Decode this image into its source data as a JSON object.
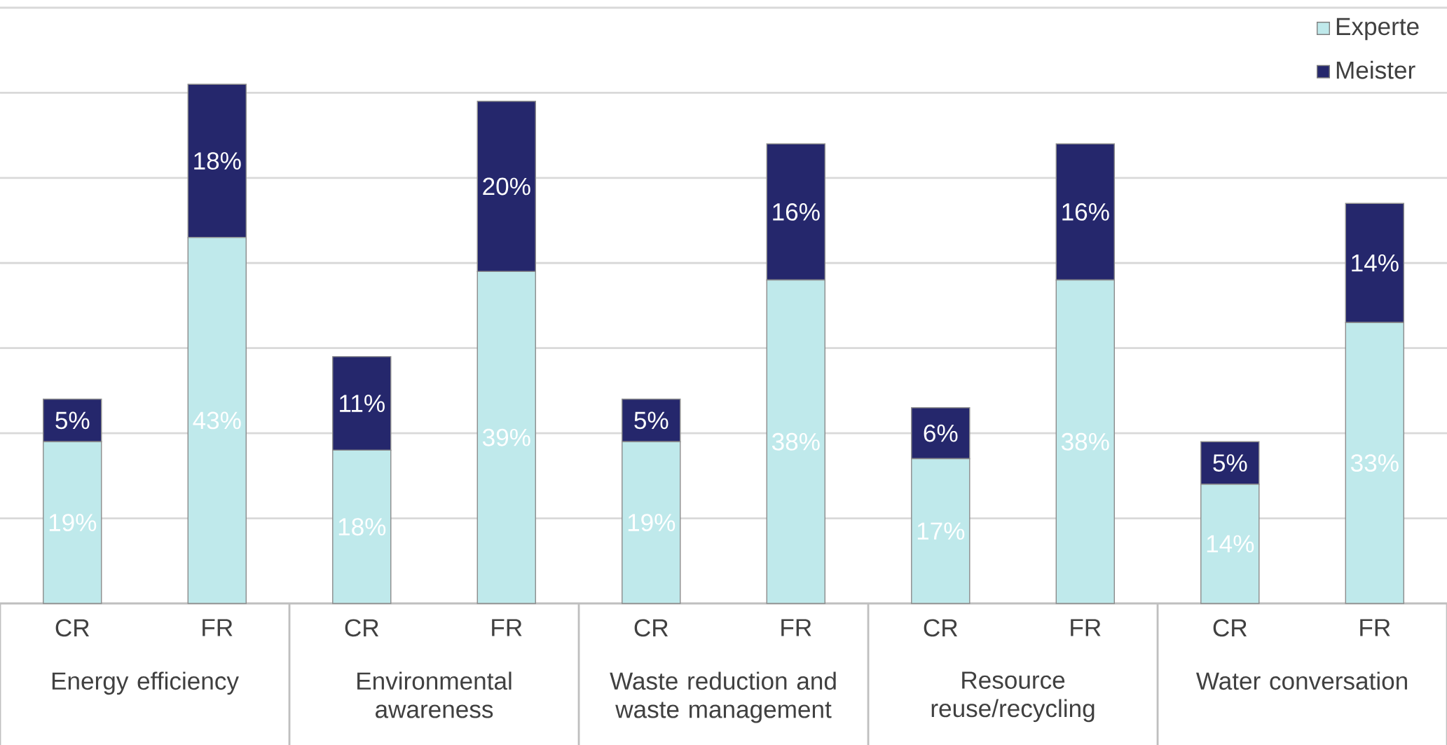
{
  "chart_data": {
    "type": "bar",
    "stacked": true,
    "categories": [
      "CR",
      "FR",
      "CR",
      "FR",
      "CR",
      "FR",
      "CR",
      "FR",
      "CR",
      "FR"
    ],
    "series": [
      {
        "name": "Experte",
        "color": "#bfe9eb",
        "values": [
          19,
          43,
          18,
          39,
          19,
          38,
          17,
          38,
          14,
          33
        ],
        "value_labels": [
          "19%",
          "43%",
          "18%",
          "39%",
          "19%",
          "38%",
          "17%",
          "38%",
          "14%",
          "33%"
        ]
      },
      {
        "name": "Meister",
        "color": "#25276c",
        "values": [
          5,
          18,
          11,
          20,
          5,
          16,
          6,
          16,
          5,
          14
        ],
        "value_labels": [
          "5%",
          "18%",
          "11%",
          "20%",
          "5%",
          "16%",
          "6%",
          "16%",
          "5%",
          "14%"
        ]
      }
    ],
    "annotations": [
      "Energy efficiency",
      "Environmental awareness",
      "Waste reduction and waste management",
      "Resource reuse/recycling",
      "Water conversation"
    ],
    "ylim": [
      0,
      70
    ],
    "yticks": [
      {
        "value": 10,
        "label": null
      },
      {
        "value": 20,
        "label": null
      },
      {
        "value": 30,
        "label": null
      },
      {
        "value": 40,
        "label": null
      },
      {
        "value": 50,
        "label": null
      },
      {
        "value": 60,
        "label": null
      },
      {
        "value": 70,
        "label": null
      }
    ],
    "tick_labels": "x",
    "grid": "y",
    "legend": "top right",
    "marker": "square"
  }
}
